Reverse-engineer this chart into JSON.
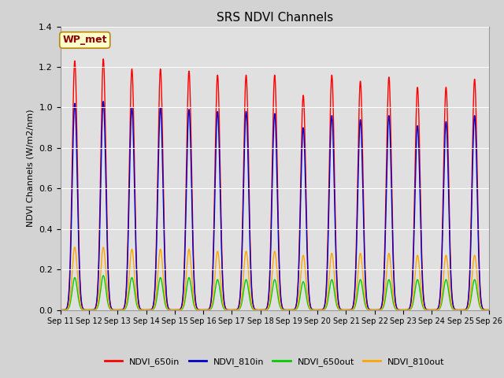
{
  "title": "SRS NDVI Channels",
  "ylabel": "NDVI Channels (W/m2/nm)",
  "annotation": "WP_met",
  "fig_facecolor": "#d3d3d3",
  "plot_bg_color": "#e0e0e0",
  "ylim": [
    0.0,
    1.4
  ],
  "yticks": [
    0.0,
    0.2,
    0.4,
    0.6,
    0.8,
    1.0,
    1.2,
    1.4
  ],
  "n_days": 15,
  "series": {
    "NDVI_650in": {
      "color": "#ff0000",
      "peaks": [
        1.23,
        1.24,
        1.19,
        1.19,
        1.18,
        1.16,
        1.16,
        1.16,
        1.06,
        1.16,
        1.13,
        1.15,
        1.1,
        1.1,
        1.14
      ]
    },
    "NDVI_810in": {
      "color": "#0000cc",
      "peaks": [
        1.02,
        1.03,
        1.0,
        1.0,
        0.99,
        0.98,
        0.98,
        0.97,
        0.9,
        0.96,
        0.94,
        0.96,
        0.91,
        0.93,
        0.96
      ]
    },
    "NDVI_650out": {
      "color": "#00cc00",
      "peaks": [
        0.16,
        0.17,
        0.16,
        0.16,
        0.16,
        0.15,
        0.15,
        0.15,
        0.14,
        0.15,
        0.15,
        0.15,
        0.15,
        0.15,
        0.15
      ]
    },
    "NDVI_810out": {
      "color": "#ffa500",
      "peaks": [
        0.31,
        0.31,
        0.3,
        0.3,
        0.3,
        0.29,
        0.29,
        0.29,
        0.27,
        0.28,
        0.28,
        0.28,
        0.27,
        0.27,
        0.27
      ]
    }
  },
  "xtick_labels": [
    "Sep 11",
    "Sep 12",
    "Sep 13",
    "Sep 14",
    "Sep 15",
    "Sep 16",
    "Sep 17",
    "Sep 18",
    "Sep 19",
    "Sep 20",
    "Sep 21",
    "Sep 22",
    "Sep 23",
    "Sep 24",
    "Sep 25",
    "Sep 26"
  ]
}
